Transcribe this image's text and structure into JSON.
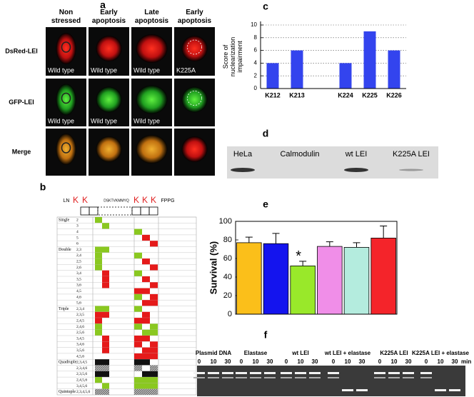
{
  "panel_a": {
    "label": "a",
    "columns": [
      "Non stressed",
      "Early apoptosis",
      "Late apoptosis",
      "Early apoptosis"
    ],
    "rows": [
      {
        "label": "DsRed-LEI",
        "captions": [
          "Wild type",
          "Wild type",
          "Wild type",
          "K225A"
        ]
      },
      {
        "label": "GFP-LEI",
        "captions": [
          "Wild type",
          "Wild type",
          "Wild type"
        ]
      },
      {
        "label": "Merge",
        "captions": []
      }
    ]
  },
  "panel_b": {
    "label": "b",
    "header": [
      "LN",
      "K",
      "K",
      "DSKTVKMMYQ",
      "K",
      "K",
      "K",
      "FPPG"
    ],
    "groups": [
      {
        "name": "Single",
        "rows": [
          "2",
          "3",
          "4",
          "5",
          "6"
        ]
      },
      {
        "name": "Double",
        "rows": [
          "2,3",
          "2,4",
          "2,5",
          "2,6",
          "3,4",
          "3,5",
          "3,6",
          "4,5",
          "4,6",
          "5,6"
        ]
      },
      {
        "name": "Triple",
        "rows": [
          "2,3,4",
          "2,3,5",
          "2,4,5",
          "2,4,6",
          "2,5,6",
          "3,4,5",
          "3,4,6",
          "3,5,6",
          "4,5,6"
        ]
      },
      {
        "name": "Quadruple",
        "rows": [
          "2,3,4,5",
          "2,3,4,6",
          "2,3,5,6",
          "2,4,5,6",
          "3,4,5,6"
        ]
      },
      {
        "name": "Quintuple",
        "rows": [
          "2,3,4,5,6"
        ]
      }
    ]
  },
  "chart_data": [
    {
      "type": "bar",
      "panel": "c",
      "ylabel": [
        "Score of",
        "nuclearization",
        "impairment"
      ],
      "categories": [
        "K212",
        "K213",
        null,
        "K224",
        "K225",
        "K226"
      ],
      "values": [
        4,
        6,
        null,
        4,
        9,
        6
      ],
      "color": "#3344ee",
      "ylim": [
        0,
        10
      ],
      "yticks": [
        0,
        2,
        4,
        6,
        8,
        10
      ],
      "grid": true
    },
    {
      "type": "bar",
      "panel": "e",
      "ylabel": "Survival (%)",
      "categories": [
        null,
        null,
        null,
        null,
        null,
        null
      ],
      "values": [
        77,
        76,
        52,
        73,
        72,
        82
      ],
      "errors": [
        6,
        11,
        5,
        5,
        5,
        13
      ],
      "colors": [
        "#fbbf1a",
        "#1414ee",
        "#99e82a",
        "#f08ee8",
        "#b4ecde",
        "#f4242a"
      ],
      "annotation": "*",
      "ylim": [
        0,
        100
      ],
      "yticks": [
        0,
        20,
        40,
        60,
        80,
        100
      ],
      "grid": false
    }
  ],
  "panel_d": {
    "label": "d",
    "lanes": [
      "HeLa",
      "Calmodulin",
      "wt LEI",
      "K225A LEI"
    ]
  },
  "panel_f": {
    "label": "f",
    "groups": [
      "Plasmid DNA",
      "Elastase",
      "wt LEI",
      "wt LEI + elastase",
      "K225A LEI",
      "K225A LEI + elastase"
    ],
    "times": [
      "0",
      "10",
      "30"
    ],
    "unit": "min"
  }
}
